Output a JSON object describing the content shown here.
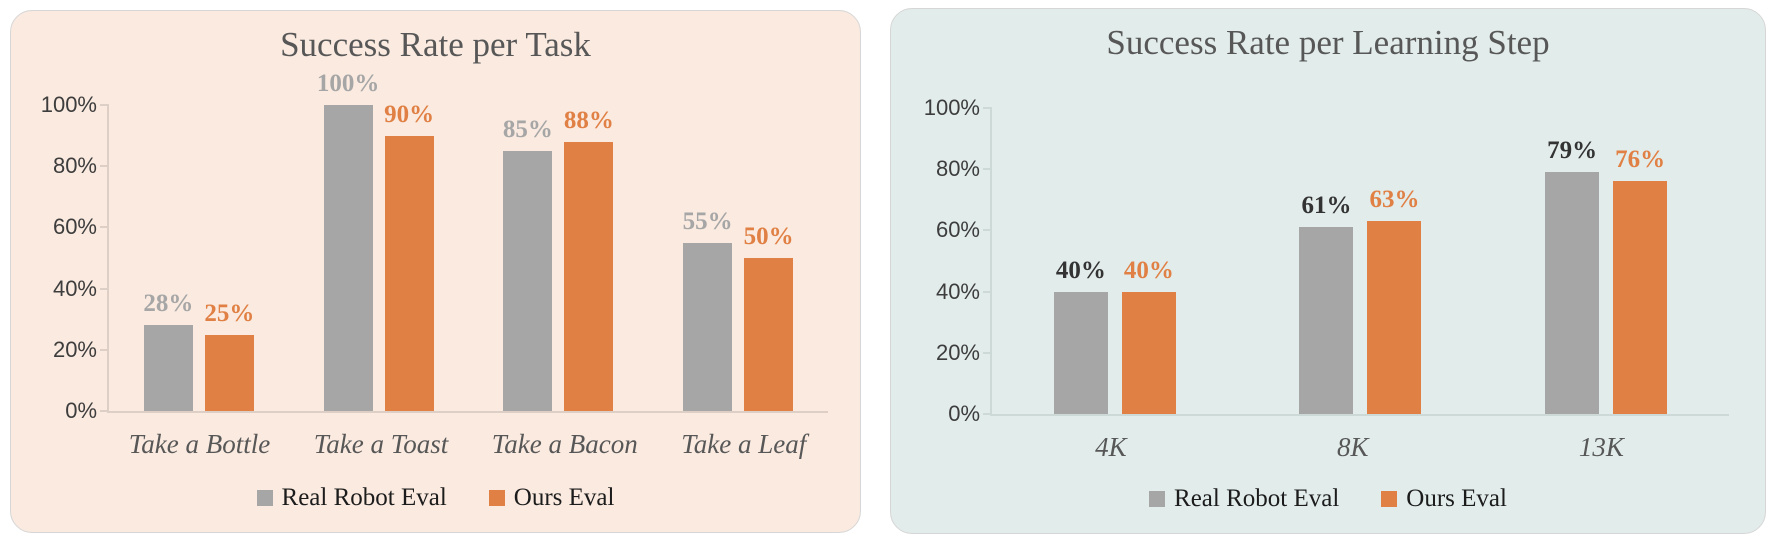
{
  "page": {
    "background": "#ffffff"
  },
  "chart_data": [
    {
      "type": "bar",
      "title": "Success Rate per Task",
      "categories": [
        "Take a Bottle",
        "Take a Toast",
        "Take a Bacon",
        "Take a Leaf"
      ],
      "series": [
        {
          "name": "Real Robot Eval",
          "color": "#a6a6a6",
          "label_color": "#a6a6a6",
          "values": [
            28,
            100,
            85,
            55
          ],
          "labels": [
            "28%",
            "100%",
            "85%",
            "55%"
          ]
        },
        {
          "name": "Ours Eval",
          "color": "#e08044",
          "label_color": "#e08044",
          "values": [
            25,
            90,
            88,
            50
          ],
          "labels": [
            "25%",
            "90%",
            "88%",
            "50%"
          ]
        }
      ],
      "xlabel": "",
      "ylabel": "",
      "ylim": [
        0,
        100
      ],
      "y_ticks": [
        "0%",
        "20%",
        "40%",
        "60%",
        "80%",
        "100%"
      ],
      "grid": false,
      "legend_position": "bottom",
      "panel_background": "#faeae0",
      "axis_color": "#ddcfc6",
      "title_color": "#575757",
      "tick_label_color": "#3d3d3d",
      "category_color": "#575757"
    },
    {
      "type": "bar",
      "title": "Success Rate per Learning Step",
      "categories": [
        "4K",
        "8K",
        "13K"
      ],
      "series": [
        {
          "name": "Real Robot Eval",
          "color": "#a6a6a6",
          "label_color": "#333333",
          "values": [
            40,
            61,
            79
          ],
          "labels": [
            "40%",
            "61%",
            "79%"
          ]
        },
        {
          "name": "Ours Eval",
          "color": "#e08044",
          "label_color": "#e08044",
          "values": [
            40,
            63,
            76
          ],
          "labels": [
            "40%",
            "63%",
            "76%"
          ]
        }
      ],
      "xlabel": "",
      "ylabel": "",
      "ylim": [
        0,
        100
      ],
      "y_ticks": [
        "0%",
        "20%",
        "40%",
        "60%",
        "80%",
        "100%"
      ],
      "grid": false,
      "legend_position": "bottom",
      "panel_background": "#e2eceb",
      "axis_color": "#cdd9d7",
      "title_color": "#575757",
      "tick_label_color": "#3d3d3d",
      "category_color": "#575757"
    }
  ]
}
